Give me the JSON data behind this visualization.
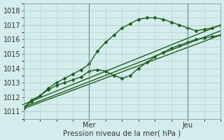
{
  "xlabel": "Pression niveau de la mer( hPa )",
  "bg_color": "#d4edec",
  "grid_color": "#a8cece",
  "line_color": "#1f5e1f",
  "marker_color": "#1f5e1f",
  "xlim": [
    0,
    72
  ],
  "ylim": [
    1010.5,
    1018.5
  ],
  "yticks": [
    1011,
    1012,
    1013,
    1014,
    1015,
    1016,
    1017,
    1018
  ],
  "xtick_positions": [
    24,
    60
  ],
  "xtick_labels": [
    "Mer",
    "Jeu"
  ],
  "vlines": [
    24,
    60
  ],
  "series": [
    {
      "x": [
        0,
        72
      ],
      "y": [
        1011.2,
        1016.3
      ],
      "marker": null,
      "lw": 1.0
    },
    {
      "x": [
        0,
        72
      ],
      "y": [
        1011.5,
        1017.0
      ],
      "marker": null,
      "lw": 1.0
    },
    {
      "x": [
        0,
        72
      ],
      "y": [
        1011.3,
        1016.6
      ],
      "marker": null,
      "lw": 1.0
    },
    {
      "x": [
        0,
        3,
        6,
        9,
        12,
        15,
        18,
        21,
        24,
        27,
        30,
        33,
        36,
        39,
        42,
        45,
        48,
        51,
        54,
        57,
        60,
        63,
        66,
        69,
        72
      ],
      "y": [
        1011.2,
        1011.8,
        1012.1,
        1012.5,
        1012.8,
        1013.0,
        1013.2,
        1013.4,
        1013.8,
        1013.9,
        1013.8,
        1013.5,
        1013.3,
        1013.5,
        1014.0,
        1014.4,
        1014.8,
        1015.1,
        1015.4,
        1015.6,
        1015.8,
        1016.0,
        1016.1,
        1016.2,
        1016.3
      ],
      "marker": "D",
      "ms": 2.5,
      "lw": 1.0
    },
    {
      "x": [
        0,
        3,
        6,
        9,
        12,
        15,
        18,
        21,
        24,
        27,
        30,
        33,
        36,
        39,
        42,
        45,
        48,
        51,
        54,
        57,
        60,
        63,
        66,
        69,
        72
      ],
      "y": [
        1011.3,
        1011.7,
        1012.1,
        1012.6,
        1013.0,
        1013.3,
        1013.6,
        1013.9,
        1014.3,
        1015.2,
        1015.8,
        1016.3,
        1016.8,
        1017.1,
        1017.4,
        1017.5,
        1017.5,
        1017.4,
        1017.2,
        1017.0,
        1016.8,
        1016.6,
        1016.7,
        1016.8,
        1017.0
      ],
      "marker": "D",
      "ms": 2.5,
      "lw": 1.0
    }
  ]
}
